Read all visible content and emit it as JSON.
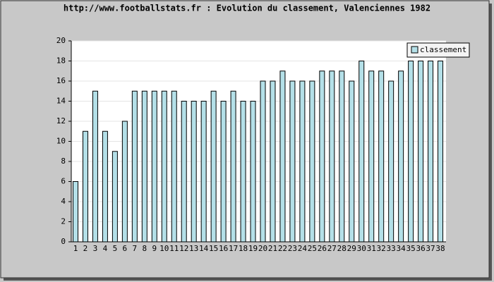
{
  "chart_data": {
    "type": "bar",
    "title": "http://www.footballstats.fr : Evolution du classement, Valenciennes 1982",
    "categories": [
      1,
      2,
      3,
      4,
      5,
      6,
      7,
      8,
      9,
      10,
      11,
      12,
      13,
      14,
      15,
      16,
      17,
      18,
      19,
      20,
      21,
      22,
      23,
      24,
      25,
      26,
      27,
      28,
      29,
      30,
      31,
      32,
      33,
      34,
      35,
      36,
      37,
      38
    ],
    "series": [
      {
        "name": "classement",
        "color": "#b4e0e8",
        "values": [
          6,
          11,
          15,
          11,
          9,
          12,
          15,
          15,
          15,
          15,
          15,
          14,
          14,
          14,
          15,
          14,
          15,
          14,
          14,
          16,
          16,
          17,
          16,
          16,
          16,
          17,
          17,
          17,
          16,
          18,
          17,
          17,
          16,
          17,
          18,
          18,
          18,
          18
        ]
      }
    ],
    "ylim": [
      0,
      20
    ],
    "yticks": [
      0,
      2,
      4,
      6,
      8,
      10,
      12,
      14,
      16,
      18,
      20
    ],
    "grid": true,
    "legend": "top-right"
  }
}
